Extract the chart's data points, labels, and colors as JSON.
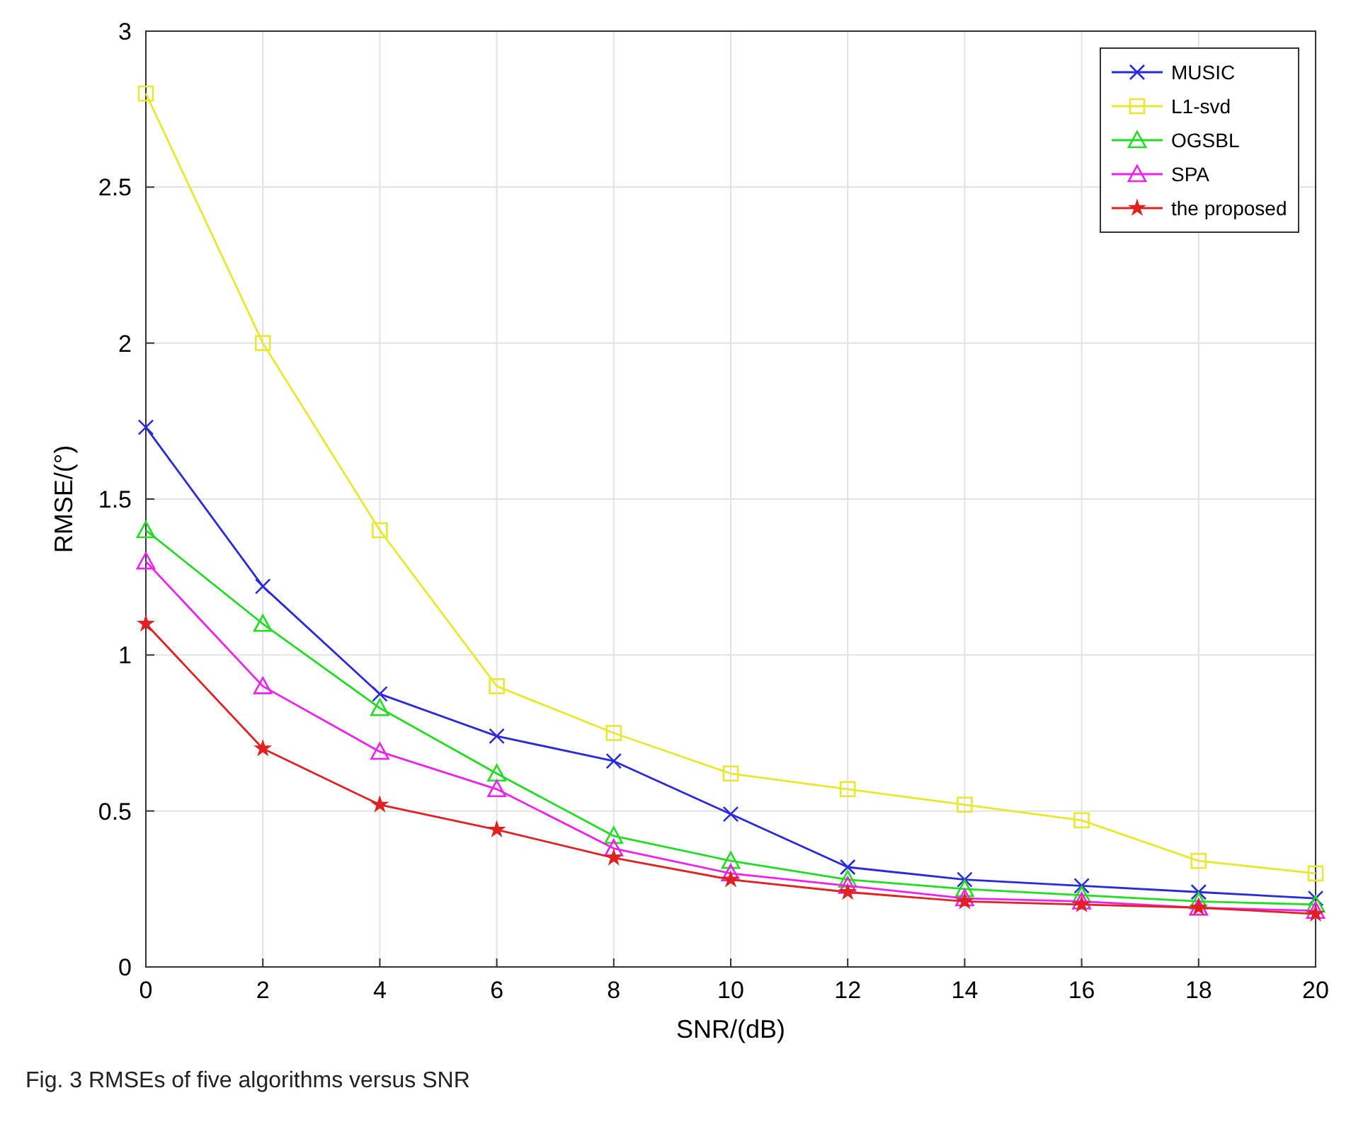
{
  "chart_data": {
    "type": "line",
    "xlabel": "SNR/(dB)",
    "ylabel": "RMSE/(°)",
    "x": [
      0,
      2,
      4,
      6,
      8,
      10,
      12,
      14,
      16,
      18,
      20
    ],
    "xlim": [
      0,
      20
    ],
    "xticks": [
      0,
      2,
      4,
      6,
      8,
      10,
      12,
      14,
      16,
      18,
      20
    ],
    "ylim": [
      0,
      3
    ],
    "yticks": [
      0,
      0.5,
      1,
      1.5,
      2,
      2.5,
      3
    ],
    "grid": true,
    "legend": "top right",
    "line_style": "solid",
    "series": [
      {
        "name": "MUSIC",
        "color": "#2a2ad8",
        "marker": "cross",
        "values": [
          1.73,
          1.22,
          0.875,
          0.74,
          0.66,
          0.49,
          0.32,
          0.28,
          0.26,
          0.24,
          0.22
        ]
      },
      {
        "name": "L1-svd",
        "color": "#e8e830",
        "marker": "square",
        "values": [
          2.8,
          2.0,
          1.4,
          0.9,
          0.75,
          0.62,
          0.57,
          0.52,
          0.47,
          0.34,
          0.3
        ]
      },
      {
        "name": "OGSBL",
        "color": "#22dd22",
        "marker": "triangle",
        "values": [
          1.4,
          1.1,
          0.83,
          0.62,
          0.42,
          0.34,
          0.28,
          0.25,
          0.23,
          0.21,
          0.2
        ]
      },
      {
        "name": "SPA",
        "color": "#ee22ee",
        "marker": "triangle",
        "values": [
          1.3,
          0.9,
          0.69,
          0.57,
          0.38,
          0.3,
          0.26,
          0.22,
          0.21,
          0.19,
          0.18
        ]
      },
      {
        "name": "the proposed",
        "color": "#e02222",
        "marker": "star",
        "values": [
          1.1,
          0.7,
          0.52,
          0.44,
          0.35,
          0.28,
          0.24,
          0.21,
          0.2,
          0.19,
          0.17
        ]
      }
    ],
    "annotations": [
      "Fig. 3  RMSEs of five algorithms versus SNR"
    ]
  }
}
